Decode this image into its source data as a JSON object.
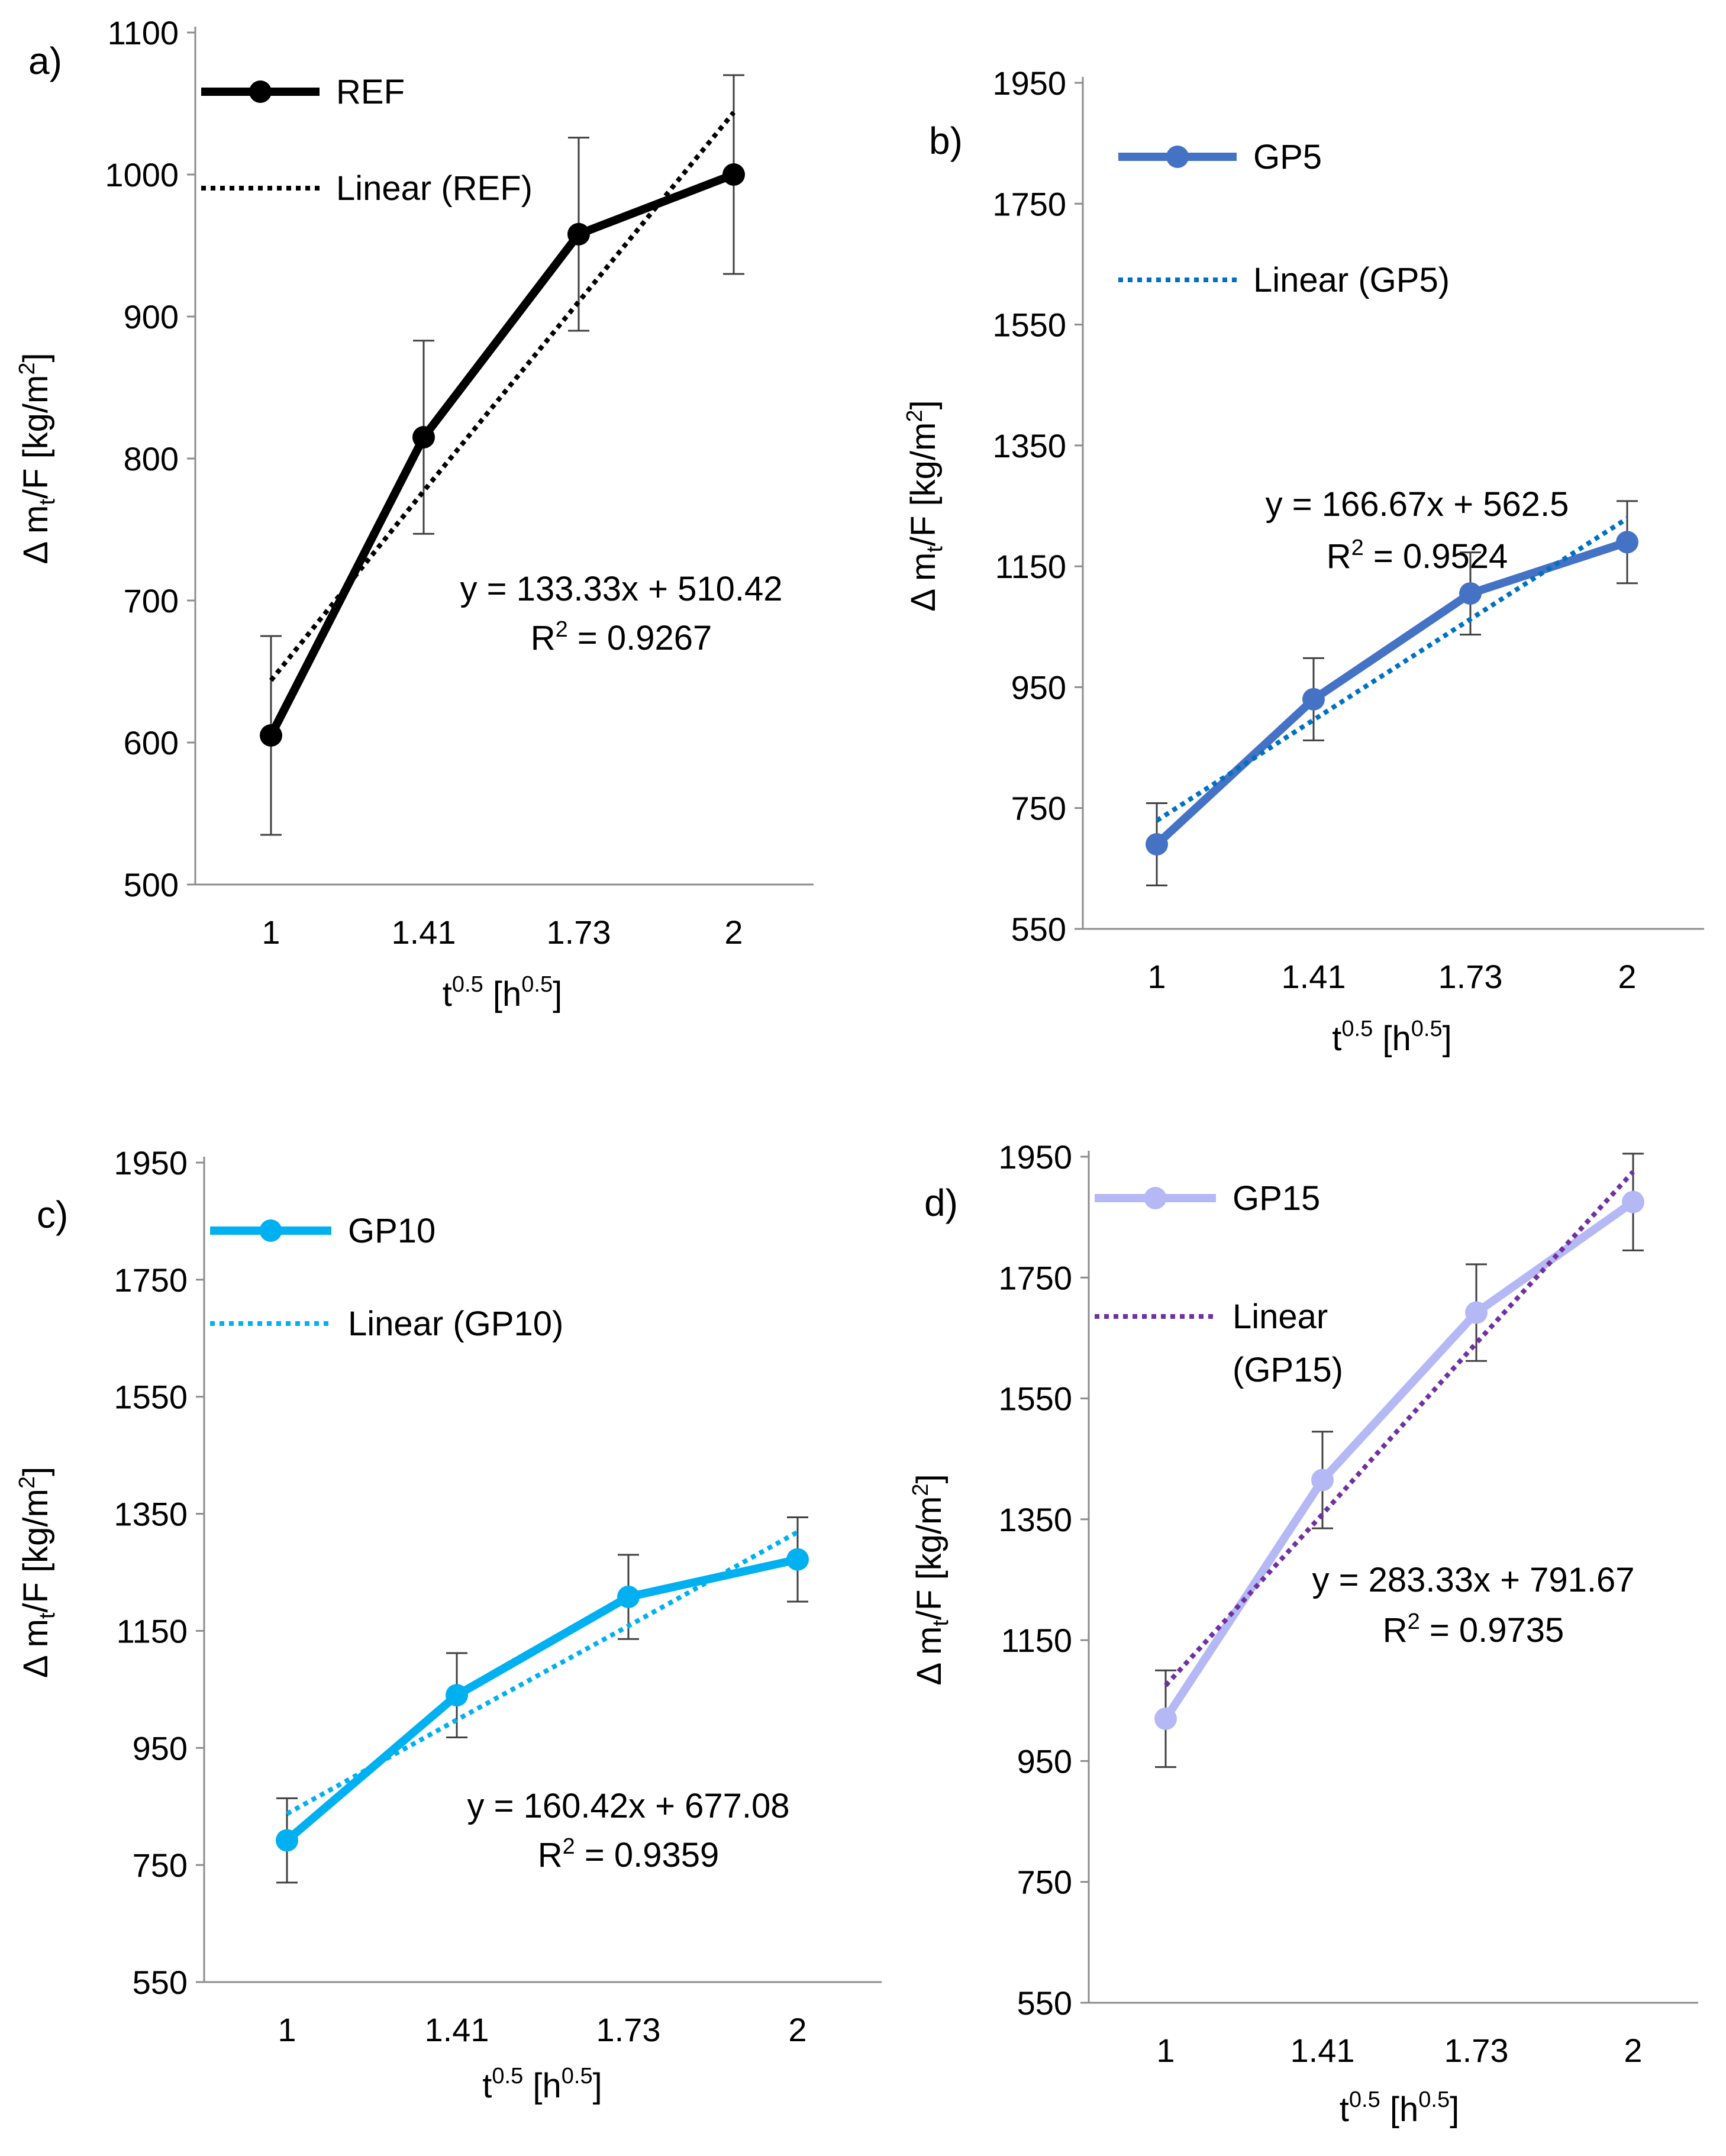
{
  "chart_data": [
    {
      "type": "line",
      "panel_label": "a)",
      "categories": [
        "1",
        "1.41",
        "1.73",
        "2"
      ],
      "x": [
        1,
        1.41,
        1.73,
        2
      ],
      "series": [
        {
          "name": "REF",
          "values": [
            605,
            815,
            958,
            1000
          ],
          "errors": [
            70,
            68,
            68,
            70
          ],
          "color": "#000000"
        }
      ],
      "trendline": {
        "name": "Linear (REF)",
        "values": [
          643.75,
          777.08,
          910.41,
          1043.74
        ],
        "color": "#000000"
      },
      "equation": "y = 133.33x + 510.42",
      "r2": "R² = 0.9267",
      "ylabel": "Δ mt/F [kg/m²]",
      "xlabel": "t0.5 [h0.5]",
      "ylim": [
        500,
        1100
      ],
      "yticks": [
        "500",
        "600",
        "700",
        "800",
        "900",
        "1000",
        "1100"
      ],
      "legend_position": "top-left"
    },
    {
      "type": "line",
      "panel_label": "b)",
      "categories": [
        "1",
        "1.41",
        "1.73",
        "2"
      ],
      "x": [
        1,
        1.41,
        1.73,
        2
      ],
      "series": [
        {
          "name": "GP5",
          "values": [
            690,
            930,
            1105,
            1190
          ],
          "errors": [
            68,
            68,
            68,
            68
          ],
          "color": "#4472C4"
        }
      ],
      "trendline": {
        "name": "Linear (GP5)",
        "values": [
          729.17,
          895.84,
          1062.51,
          1229.18
        ],
        "color": "#0070C0"
      },
      "equation": "y = 166.67x + 562.5",
      "r2": "R² = 0.9524",
      "ylabel": "Δ mt/F [kg/m²]",
      "xlabel": "t0.5 [h0.5]",
      "ylim": [
        550,
        2000
      ],
      "yticks": [
        "550",
        "750",
        "950",
        "1150",
        "1350",
        "1550",
        "1750",
        "1950"
      ],
      "legend_position": "top-left"
    },
    {
      "type": "line",
      "panel_label": "c)",
      "categories": [
        "1",
        "1.41",
        "1.73",
        "2"
      ],
      "x": [
        1,
        1.41,
        1.73,
        2
      ],
      "series": [
        {
          "name": "GP10",
          "values": [
            792,
            1040,
            1208,
            1272
          ],
          "errors": [
            72,
            72,
            72,
            72
          ],
          "color": "#00B0F0"
        }
      ],
      "trendline": {
        "name": "Linear (GP10)",
        "values": [
          837.5,
          997.92,
          1158.34,
          1318.76
        ],
        "color": "#00B0F0"
      },
      "equation": "y = 160.42x + 677.08",
      "r2": "R² = 0.9359",
      "ylabel": "Δ mt/F [kg/m²]",
      "xlabel": "t0.5 [h0.5]",
      "ylim": [
        550,
        2000
      ],
      "yticks": [
        "550",
        "750",
        "950",
        "1150",
        "1350",
        "1550",
        "1750",
        "1950"
      ],
      "legend_position": "top-left"
    },
    {
      "type": "line",
      "panel_label": "d)",
      "categories": [
        "1",
        "1.41",
        "1.73",
        "2"
      ],
      "x": [
        1,
        1.41,
        1.73,
        2
      ],
      "series": [
        {
          "name": "GP15",
          "values": [
            1020,
            1415,
            1692,
            1875
          ],
          "errors": [
            80,
            80,
            80,
            80
          ],
          "color": "#B4B8F5"
        }
      ],
      "trendline": {
        "name": "Linear (GP15)",
        "legend_lines": [
          "Linear",
          "(GP15)"
        ],
        "values": [
          1075,
          1358.33,
          1641.66,
          1924.99
        ],
        "color": "#7030A0"
      },
      "equation": "y = 283.33x + 791.67",
      "r2": "R² = 0.9735",
      "ylabel": "Δ mt/F [kg/m²]",
      "xlabel": "t0.5 [h0.5]",
      "ylim": [
        550,
        2000
      ],
      "yticks": [
        "550",
        "750",
        "950",
        "1150",
        "1350",
        "1550",
        "1750",
        "1950"
      ],
      "legend_position": "top-left"
    }
  ]
}
